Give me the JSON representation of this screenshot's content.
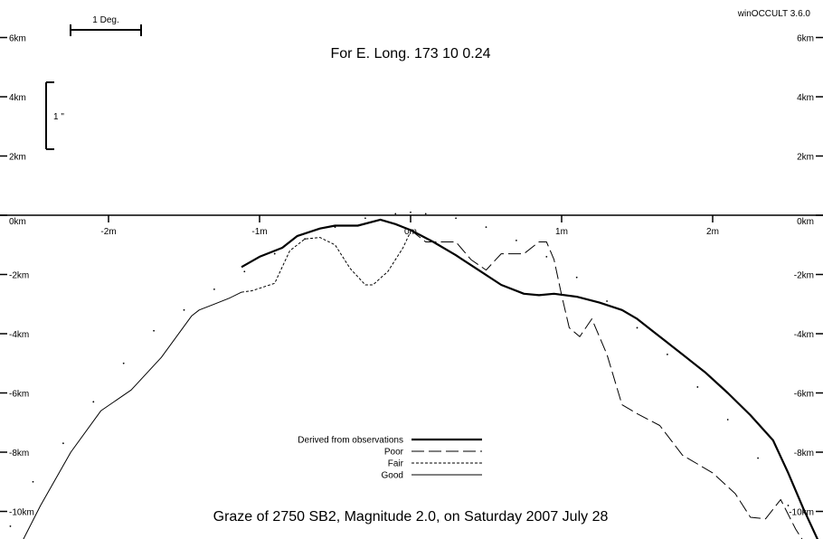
{
  "app": {
    "version": "winOCCULT 3.6.0"
  },
  "header": {
    "longitude": "For E. Long.  173 10  0.24",
    "footer": "Graze of     2750  SB2,  Magnitude   2.0,  on Saturday  2007  July  28"
  },
  "scale_bars": {
    "horizontal": "1 Deg.",
    "vertical": "1 \""
  },
  "chart_data": {
    "type": "line",
    "x_unit": "m",
    "y_unit": "km",
    "xlim": [
      -2.7,
      2.7
    ],
    "ylim": [
      -11.3,
      7.3
    ],
    "grid": false,
    "x_ticks": [
      {
        "value": -2,
        "label": "-2m"
      },
      {
        "value": -1,
        "label": "-1m"
      },
      {
        "value": 0,
        "label": "0m"
      },
      {
        "value": 1,
        "label": "1m"
      },
      {
        "value": 2,
        "label": "2m"
      }
    ],
    "y_ticks": [
      {
        "value": 6,
        "label": "6km"
      },
      {
        "value": 4,
        "label": "4km"
      },
      {
        "value": 2,
        "label": "2km"
      },
      {
        "value": 0,
        "label": "0km"
      },
      {
        "value": -2,
        "label": "-2km"
      },
      {
        "value": -4,
        "label": "-4km"
      },
      {
        "value": -6,
        "label": "-6km"
      },
      {
        "value": -8,
        "label": "-8km"
      },
      {
        "value": -10,
        "label": "-10km"
      }
    ],
    "legend_position": "bottom-center",
    "series": [
      {
        "name": "Derived from observations",
        "style": "thick",
        "x": [
          -1.12,
          -1.0,
          -0.85,
          -0.75,
          -0.6,
          -0.5,
          -0.35,
          -0.2,
          -0.1,
          -0.05,
          0.0,
          0.15,
          0.3,
          0.45,
          0.6,
          0.75,
          0.85,
          0.95,
          1.1,
          1.25,
          1.4,
          1.5,
          1.6,
          1.7,
          1.8,
          1.95,
          2.1,
          2.25,
          2.4,
          2.5,
          2.6,
          2.7
        ],
        "y": [
          -1.75,
          -1.4,
          -1.1,
          -0.7,
          -0.45,
          -0.35,
          -0.35,
          -0.15,
          -0.3,
          -0.4,
          -0.5,
          -0.9,
          -1.35,
          -1.85,
          -2.35,
          -2.65,
          -2.7,
          -2.65,
          -2.75,
          -2.95,
          -3.2,
          -3.5,
          -3.9,
          -4.3,
          -4.7,
          -5.3,
          -6.0,
          -6.75,
          -7.6,
          -8.7,
          -9.9,
          -11.0
        ]
      },
      {
        "name": "Poor",
        "style": "dashed",
        "x": [
          0.0,
          0.1,
          0.3,
          0.4,
          0.5,
          0.6,
          0.75,
          0.85,
          0.9,
          0.95,
          1.0,
          1.05,
          1.12,
          1.2,
          1.3,
          1.4,
          1.5,
          1.65,
          1.8,
          2.0,
          2.15,
          2.25,
          2.35,
          2.45,
          2.55,
          2.6,
          2.7
        ],
        "y": [
          -0.5,
          -0.9,
          -0.9,
          -1.5,
          -1.85,
          -1.3,
          -1.3,
          -0.9,
          -0.9,
          -1.5,
          -2.7,
          -3.8,
          -4.1,
          -3.5,
          -4.7,
          -6.4,
          -6.7,
          -7.1,
          -8.1,
          -8.7,
          -9.4,
          -10.2,
          -10.25,
          -9.6,
          -10.6,
          -11.0,
          -11.5
        ]
      },
      {
        "name": "Fair",
        "style": "short-dashed",
        "x": [
          -1.12,
          -1.05,
          -0.9,
          -0.8,
          -0.7,
          -0.6,
          -0.5,
          -0.4,
          -0.3,
          -0.25,
          -0.15,
          -0.05,
          0.0
        ],
        "y": [
          -2.6,
          -2.55,
          -2.3,
          -1.2,
          -0.8,
          -0.75,
          -1.0,
          -1.8,
          -2.35,
          -2.35,
          -1.9,
          -1.1,
          -0.55
        ]
      },
      {
        "name": "Good",
        "style": "thin",
        "x": [
          -2.6,
          -2.45,
          -2.25,
          -2.05,
          -1.85,
          -1.65,
          -1.45,
          -1.4,
          -1.3,
          -1.2,
          -1.12
        ],
        "y": [
          -11.3,
          -9.8,
          -8.0,
          -6.6,
          -5.9,
          -4.8,
          -3.4,
          -3.2,
          -3.0,
          -2.8,
          -2.6
        ]
      }
    ],
    "dotted_limb": {
      "x": [
        -2.65,
        -2.5,
        -2.3,
        -2.1,
        -1.9,
        -1.7,
        -1.5,
        -1.3,
        -1.1,
        -0.9,
        -0.7,
        -0.5,
        -0.3,
        -0.1,
        0.0,
        0.1,
        0.3,
        0.5,
        0.7,
        0.9,
        1.1,
        1.3,
        1.5,
        1.7,
        1.9,
        2.1,
        2.3,
        2.5,
        2.65
      ],
      "y": [
        -10.5,
        -9.0,
        -7.7,
        -6.3,
        -5.0,
        -3.9,
        -3.2,
        -2.5,
        -1.9,
        -1.3,
        -0.8,
        -0.4,
        -0.1,
        0.05,
        0.1,
        0.05,
        -0.1,
        -0.4,
        -0.85,
        -1.4,
        -2.1,
        -2.9,
        -3.8,
        -4.7,
        -5.8,
        -6.9,
        -8.2,
        -9.8,
        -11.2
      ]
    }
  }
}
